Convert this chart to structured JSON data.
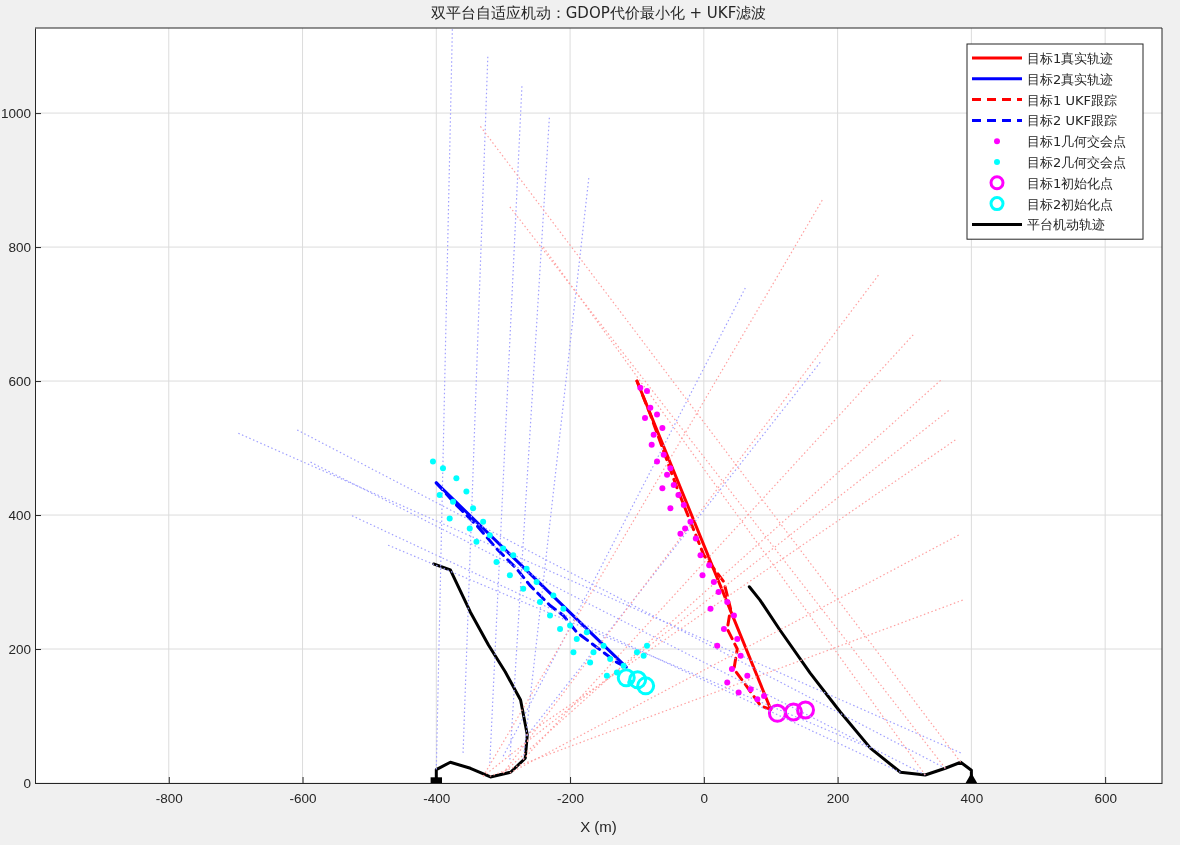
{
  "chart_data": {
    "type": "line",
    "title": "双平台自适应机动：GDOP代价最小化 + UKF滤波",
    "xlabel": "X (m)",
    "xlim": [
      -1000,
      685
    ],
    "ylim": [
      0,
      1127
    ],
    "xticks": [
      -800,
      -600,
      -400,
      -200,
      0,
      200,
      400,
      600
    ],
    "yticks": [
      0,
      200,
      400,
      600,
      800,
      1000
    ],
    "grid": true,
    "legend": "top right",
    "series": [
      {
        "type": "line",
        "color": "#a0a0ff",
        "line_style": "dotted",
        "x": [
          -400,
          -376
        ],
        "values": [
          20,
          1125
        ]
      },
      {
        "type": "line",
        "color": "#a0a0ff",
        "line_style": "dotted",
        "x": [
          -360,
          -323
        ],
        "values": [
          45,
          1084
        ]
      },
      {
        "type": "line",
        "color": "#a0a0ff",
        "line_style": "dotted",
        "x": [
          -320,
          -272
        ],
        "values": [
          30,
          1040
        ]
      },
      {
        "type": "line",
        "color": "#a0a0ff",
        "line_style": "dotted",
        "x": [
          -290,
          -231
        ],
        "values": [
          35,
          993
        ]
      },
      {
        "type": "line",
        "color": "#a0a0ff",
        "line_style": "dotted",
        "x": [
          -270,
          -172
        ],
        "values": [
          35,
          903
        ]
      },
      {
        "type": "line",
        "color": "#a0a0ff",
        "line_style": "dotted",
        "x": [
          -300,
          62
        ],
        "values": [
          40,
          739
        ]
      },
      {
        "type": "line",
        "color": "#a0a0ff",
        "line_style": "dotted",
        "x": [
          -265,
          174
        ],
        "values": [
          70,
          628
        ]
      },
      {
        "type": "line",
        "color": "#a0a0ff",
        "line_style": "dotted",
        "x": [
          384,
          -696
        ],
        "values": [
          45,
          522
        ]
      },
      {
        "type": "line",
        "color": "#a0a0ff",
        "line_style": "dotted",
        "x": [
          361,
          -608
        ],
        "values": [
          22,
          527
        ]
      },
      {
        "type": "line",
        "color": "#a0a0ff",
        "line_style": "dotted",
        "x": [
          331,
          -588
        ],
        "values": [
          12,
          479
        ]
      },
      {
        "type": "line",
        "color": "#a0a0ff",
        "line_style": "dotted",
        "x": [
          294,
          -526
        ],
        "values": [
          16,
          399
        ]
      },
      {
        "type": "line",
        "color": "#a0a0ff",
        "line_style": "dotted",
        "x": [
          249,
          -472
        ],
        "values": [
          52,
          355
        ]
      },
      {
        "type": "line",
        "color": "#ffa0a0",
        "line_style": "dotted",
        "x": [
          -330,
          177
        ],
        "values": [
          10,
          870
        ]
      },
      {
        "type": "line",
        "color": "#ffa0a0",
        "line_style": "dotted",
        "x": [
          -300,
          261
        ],
        "values": [
          15,
          758
        ]
      },
      {
        "type": "line",
        "color": "#ffa0a0",
        "line_style": "dotted",
        "x": [
          -270,
          313
        ],
        "values": [
          35,
          669
        ]
      },
      {
        "type": "line",
        "color": "#ffa0a0",
        "line_style": "dotted",
        "x": [
          -300,
          354
        ],
        "values": [
          15,
          601
        ]
      },
      {
        "type": "line",
        "color": "#ffa0a0",
        "line_style": "dotted",
        "x": [
          -330,
          366
        ],
        "values": [
          10,
          556
        ]
      },
      {
        "type": "line",
        "color": "#ffa0a0",
        "line_style": "dotted",
        "x": [
          -265,
          376
        ],
        "values": [
          72,
          512
        ]
      },
      {
        "type": "line",
        "color": "#ffa0a0",
        "line_style": "dotted",
        "x": [
          -290,
          381
        ],
        "values": [
          15,
          370
        ]
      },
      {
        "type": "line",
        "color": "#ffa0a0",
        "line_style": "dotted",
        "x": [
          -320,
          387
        ],
        "values": [
          10,
          273
        ]
      },
      {
        "type": "line",
        "color": "#ffa0a0",
        "line_style": "dotted",
        "x": [
          384,
          -334
        ],
        "values": [
          31,
          980
        ]
      },
      {
        "type": "line",
        "color": "#ffa0a0",
        "line_style": "dotted",
        "x": [
          361,
          -290
        ],
        "values": [
          22,
          860
        ]
      },
      {
        "type": "line",
        "color": "#ffa0a0",
        "line_style": "dotted",
        "x": [
          331,
          -240
        ],
        "values": [
          12,
          800
        ]
      },
      {
        "name": "目标1真实轨迹",
        "type": "line",
        "color": "#ff0000",
        "line_style": "solid",
        "marker": "none",
        "x": [
          -100,
          100
        ],
        "values": [
          600,
          110
        ]
      },
      {
        "name": "目标2真实轨迹",
        "type": "line",
        "color": "#0000ff",
        "line_style": "solid",
        "marker": "none",
        "x": [
          -400,
          -116
        ],
        "values": [
          448,
          173
        ]
      },
      {
        "name": "目标1 UKF跟踪",
        "type": "line",
        "color": "#ff0000",
        "line_style": "dashed",
        "marker": "none",
        "x": [
          -100,
          -80,
          -60,
          -40,
          -20,
          0,
          30,
          40,
          35,
          50,
          45,
          60,
          85,
          100
        ],
        "values": [
          600,
          550,
          495,
          440,
          390,
          340,
          300,
          260,
          230,
          200,
          170,
          150,
          115,
          110
        ]
      },
      {
        "name": "目标2 UKF跟踪",
        "type": "line",
        "color": "#0000ff",
        "line_style": "dashed",
        "marker": "none",
        "x": [
          -400,
          -370,
          -340,
          -310,
          -280,
          -260,
          -230,
          -210,
          -190,
          -170,
          -150,
          -130,
          -116
        ],
        "values": [
          448,
          415,
          385,
          350,
          320,
          295,
          265,
          250,
          225,
          210,
          195,
          180,
          173
        ]
      },
      {
        "name": "目标1几何交会点",
        "type": "scatter",
        "color": "#ff00ff",
        "marker": "circle",
        "x": [
          -95,
          -85,
          -80,
          -88,
          -70,
          -75,
          -62,
          -78,
          -60,
          -50,
          -70,
          -55,
          -45,
          -62,
          -38,
          -30,
          -50,
          -20,
          -28,
          -12,
          -35,
          -5,
          8,
          15,
          -2,
          22,
          35,
          10,
          45,
          30,
          50,
          20,
          55,
          42,
          65,
          35,
          70,
          80,
          52,
          90
        ],
        "values": [
          590,
          585,
          560,
          545,
          550,
          520,
          530,
          505,
          490,
          470,
          480,
          460,
          445,
          440,
          430,
          415,
          410,
          390,
          380,
          365,
          372,
          340,
          325,
          300,
          310,
          285,
          270,
          260,
          250,
          230,
          215,
          205,
          190,
          170,
          160,
          150,
          140,
          125,
          135,
          130
        ]
      },
      {
        "name": "目标2几何交会点",
        "type": "scatter",
        "color": "#00ffff",
        "marker": "circle",
        "x": [
          -405,
          -390,
          -395,
          -370,
          -375,
          -355,
          -380,
          -345,
          -350,
          -330,
          -320,
          -340,
          -300,
          -310,
          -285,
          -290,
          -265,
          -270,
          -250,
          -245,
          -225,
          -230,
          -210,
          -200,
          -215,
          -190,
          -175,
          -195,
          -165,
          -150,
          -140,
          -170,
          -130,
          -120,
          -100,
          -90,
          -85,
          -145,
          -110
        ],
        "values": [
          480,
          470,
          430,
          455,
          420,
          435,
          395,
          410,
          380,
          390,
          370,
          360,
          350,
          330,
          340,
          310,
          320,
          290,
          300,
          270,
          280,
          250,
          260,
          235,
          230,
          215,
          225,
          195,
          195,
          205,
          185,
          180,
          165,
          175,
          195,
          190,
          205,
          160,
          150
        ]
      },
      {
        "name": "目标1初始化点",
        "type": "bubble",
        "color": "#ff00ff",
        "x": [
          110,
          134,
          152
        ],
        "values": [
          104,
          106,
          109
        ],
        "sizes": [
          1,
          1,
          1
        ]
      },
      {
        "name": "目标2初始化点",
        "type": "bubble",
        "color": "#00ffff",
        "x": [
          -116,
          -99,
          -87
        ],
        "values": [
          157,
          154,
          145
        ],
        "sizes": [
          1,
          1,
          1
        ]
      },
      {
        "name": "平台机动轨迹",
        "type": "line",
        "color": "#000000",
        "line_style": "solid",
        "marker": "none",
        "x": [
          -400,
          -400,
          -379,
          -349,
          -319,
          -289,
          -267,
          -264,
          -274,
          -297,
          -322,
          -349,
          -379,
          -404
        ],
        "values": [
          0,
          20,
          31,
          22,
          9,
          16,
          37,
          72,
          124,
          166,
          206,
          255,
          318,
          327
        ]
      },
      {
        "type": "line",
        "color": "#000000",
        "line_style": "solid",
        "marker": "none",
        "x": [
          400,
          400,
          384,
          361,
          331,
          294,
          249,
          204,
          159,
          114,
          84,
          68
        ],
        "values": [
          0,
          19,
          31,
          22,
          12,
          16,
          52,
          106,
          164,
          228,
          273,
          293
        ]
      },
      {
        "type": "scatter",
        "color": "#000000",
        "marker": "square",
        "x": [
          -400
        ],
        "values": [
          0
        ]
      },
      {
        "type": "scatter",
        "color": "#000000",
        "marker": "triangle",
        "x": [
          400
        ],
        "values": [
          0
        ]
      }
    ]
  }
}
